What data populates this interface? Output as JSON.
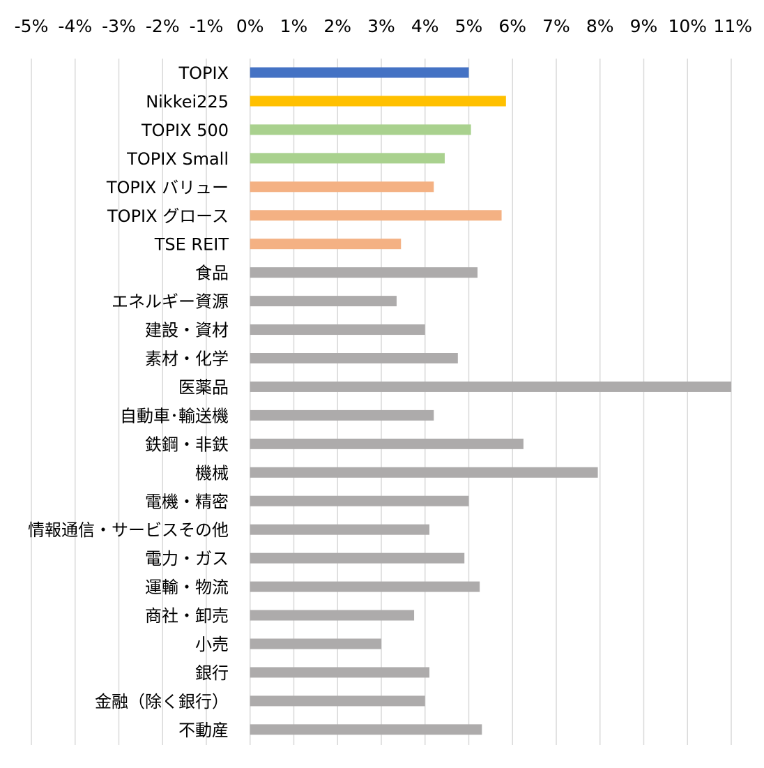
{
  "chart_data": {
    "type": "bar",
    "orientation": "horizontal",
    "title": "",
    "xlabel": "",
    "ylabel": "",
    "xlim": [
      -5,
      11
    ],
    "x_ticks": [
      -5,
      -4,
      -3,
      -2,
      -1,
      0,
      1,
      2,
      3,
      4,
      5,
      6,
      7,
      8,
      9,
      10,
      11
    ],
    "x_tick_labels": [
      "-5%",
      "-4%",
      "-3%",
      "-2%",
      "-1%",
      "0%",
      "1%",
      "2%",
      "3%",
      "4%",
      "5%",
      "6%",
      "7%",
      "8%",
      "9%",
      "10%",
      "11%"
    ],
    "x_axis_position": "top",
    "value_unit": "%",
    "grid": "vertical",
    "legend": "none",
    "colors": {
      "blue": "#4472C4",
      "gold": "#FFC000",
      "green": "#A9D18E",
      "orange": "#F4B183",
      "gray": "#ADABAB",
      "grid": "#D9D9D9"
    },
    "categories": [
      "TOPIX",
      "Nikkei225",
      "TOPIX 500",
      "TOPIX Small",
      "TOPIX バリュー",
      "TOPIX グロース",
      "TSE REIT",
      "食品",
      "エネルギー資源",
      "建設・資材",
      "素材・化学",
      "医薬品",
      "自動車･輸送機",
      "鉄鋼・非鉄",
      "機械",
      "電機・精密",
      "情報通信・サービスその他",
      "電力・ガス",
      "運輸・物流",
      "商社・卸売",
      "小売",
      "銀行",
      "金融（除く銀行）",
      "不動産"
    ],
    "values": [
      5.0,
      5.85,
      5.05,
      4.45,
      4.2,
      5.75,
      3.45,
      5.2,
      3.35,
      4.0,
      4.75,
      11.0,
      4.2,
      6.25,
      7.95,
      5.0,
      4.1,
      4.9,
      5.25,
      3.75,
      3.0,
      4.1,
      4.0,
      5.3
    ],
    "bar_colors": [
      "blue",
      "gold",
      "green",
      "green",
      "orange",
      "orange",
      "orange",
      "gray",
      "gray",
      "gray",
      "gray",
      "gray",
      "gray",
      "gray",
      "gray",
      "gray",
      "gray",
      "gray",
      "gray",
      "gray",
      "gray",
      "gray",
      "gray",
      "gray"
    ]
  }
}
